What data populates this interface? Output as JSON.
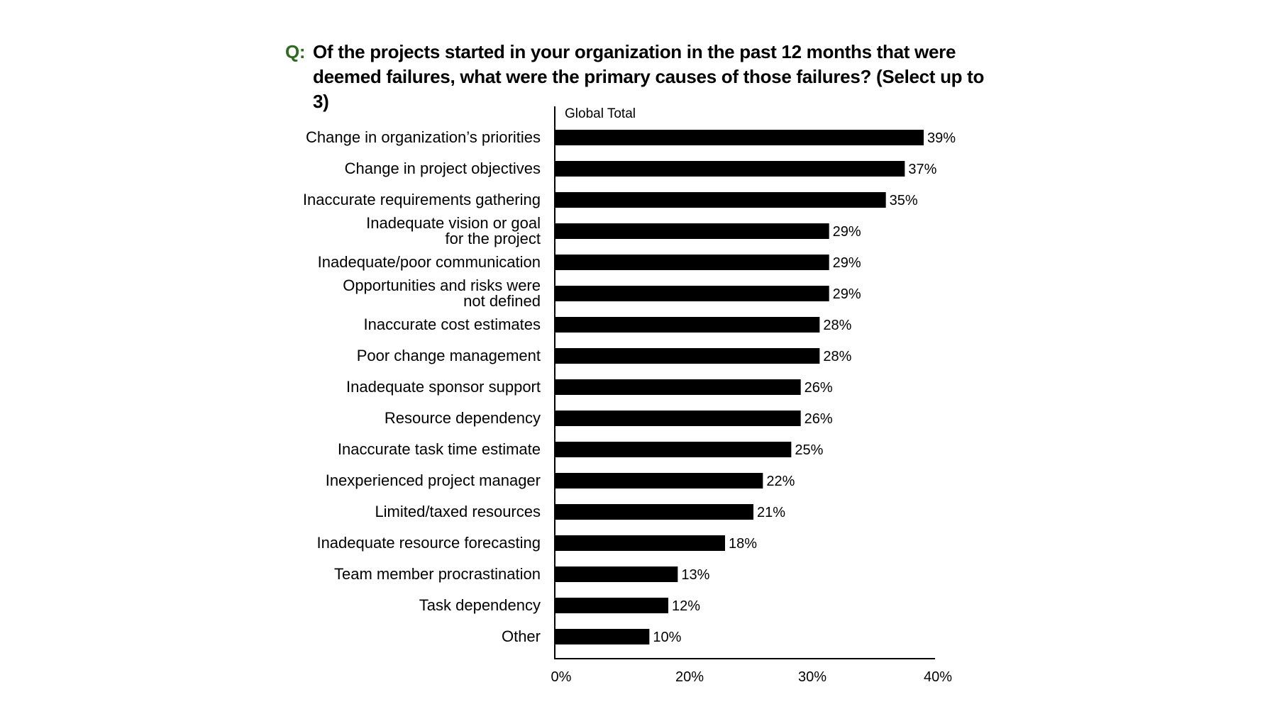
{
  "question": {
    "prefix": "Q:",
    "text_line1": "Of the projects started in your organization in the past 12 months that were",
    "text_line2": "deemed failures, what were the primary causes of those failures? (Select up to 3)"
  },
  "colors": {
    "bar": "#000000",
    "question_prefix": "#2e6b1f"
  },
  "chart_data": {
    "type": "bar",
    "orientation": "horizontal",
    "title": "",
    "xlabel": "",
    "ylabel": "",
    "series_label": "Global Total",
    "categories": [
      [
        "Change in organization’s priorities"
      ],
      [
        "Change in project objectives"
      ],
      [
        "Inaccurate requirements gathering"
      ],
      [
        "Inadequate vision or goal",
        "for the project"
      ],
      [
        "Inadequate/poor communication"
      ],
      [
        "Opportunities and risks were",
        "not defined"
      ],
      [
        "Inaccurate cost estimates"
      ],
      [
        "Poor change management"
      ],
      [
        "Inadequate sponsor support"
      ],
      [
        "Resource dependency"
      ],
      [
        "Inaccurate task time estimate"
      ],
      [
        "Inexperienced project manager"
      ],
      [
        "Limited/taxed resources"
      ],
      [
        "Inadequate resource forecasting"
      ],
      [
        "Team member procrastination"
      ],
      [
        "Task dependency"
      ],
      [
        "Other"
      ]
    ],
    "values": [
      39,
      37,
      35,
      29,
      29,
      29,
      28,
      28,
      26,
      26,
      25,
      22,
      21,
      18,
      13,
      12,
      10
    ],
    "value_labels": [
      "39%",
      "37%",
      "35%",
      "29%",
      "29%",
      "29%",
      "28%",
      "28%",
      "26%",
      "26%",
      "25%",
      "22%",
      "21%",
      "18%",
      "13%",
      "12%",
      "10%"
    ],
    "x_ticks": [
      {
        "value": 0,
        "label": "0%"
      },
      {
        "value": 20,
        "label": "20%"
      },
      {
        "value": 30,
        "label": "30%"
      },
      {
        "value": 40,
        "label": "40%"
      }
    ],
    "xlim": [
      0,
      40
    ],
    "grid": false,
    "legend": "none"
  }
}
